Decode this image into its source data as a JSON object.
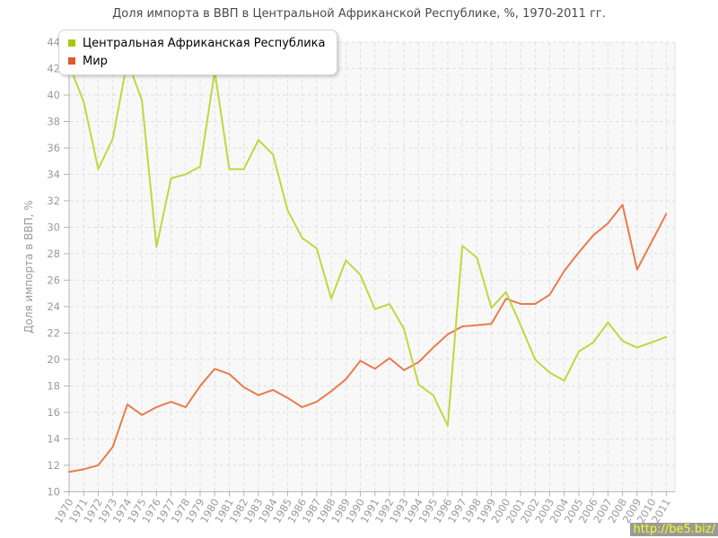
{
  "title": "Доля импорта в ВВП в Центральной Африканской Республике, %, 1970-2011 гг.",
  "legend": {
    "items": [
      {
        "label": "Центральная Африканская Республика",
        "color": "#a3cc11"
      },
      {
        "label": "Мир",
        "color": "#e0592a"
      }
    ]
  },
  "watermark": {
    "text": "http://be5.biz/",
    "bg": "#9a9a9a",
    "color": "#f6ff13"
  },
  "chart_data": {
    "type": "line",
    "x": [
      1970,
      1971,
      1972,
      1973,
      1974,
      1975,
      1976,
      1977,
      1978,
      1979,
      1980,
      1981,
      1982,
      1983,
      1984,
      1985,
      1986,
      1987,
      1988,
      1989,
      1990,
      1991,
      1992,
      1993,
      1994,
      1995,
      1996,
      1997,
      1998,
      1999,
      2000,
      2001,
      2002,
      2003,
      2004,
      2005,
      2006,
      2007,
      2008,
      2009,
      2010,
      2011
    ],
    "series": [
      {
        "id": "car",
        "name": "Центральная Африканская Республика",
        "color": "#bfd840",
        "values": [
          42.3,
          39.5,
          34.4,
          36.7,
          42.6,
          39.6,
          28.5,
          33.7,
          34.0,
          34.6,
          41.8,
          34.4,
          34.4,
          36.6,
          35.5,
          31.3,
          29.2,
          28.4,
          24.6,
          27.5,
          26.4,
          23.8,
          24.2,
          22.3,
          18.1,
          17.3,
          15.0,
          28.6,
          27.7,
          23.9,
          25.1,
          22.6,
          20.0,
          19.0,
          18.4,
          20.6,
          21.3,
          22.8,
          21.4,
          20.9,
          21.3,
          21.7
        ]
      },
      {
        "id": "world",
        "name": "Мир",
        "color": "#e87c4c",
        "values": [
          11.5,
          11.7,
          12.0,
          13.4,
          16.6,
          15.8,
          16.4,
          16.8,
          16.4,
          18.0,
          19.3,
          18.9,
          17.9,
          17.3,
          17.7,
          17.1,
          16.4,
          16.8,
          17.6,
          18.5,
          19.9,
          19.3,
          20.1,
          19.2,
          19.8,
          20.9,
          21.9,
          22.5,
          22.6,
          22.7,
          24.6,
          24.2,
          24.2,
          24.9,
          26.7,
          28.1,
          29.4,
          30.3,
          31.7,
          26.8,
          28.9,
          31.0
        ]
      }
    ],
    "xlabel": "",
    "ylabel": "Доля импорта в ВВП, %",
    "ylim": [
      10,
      44
    ],
    "ytick_step": 2,
    "grid": true,
    "legend_position": "top-left"
  }
}
